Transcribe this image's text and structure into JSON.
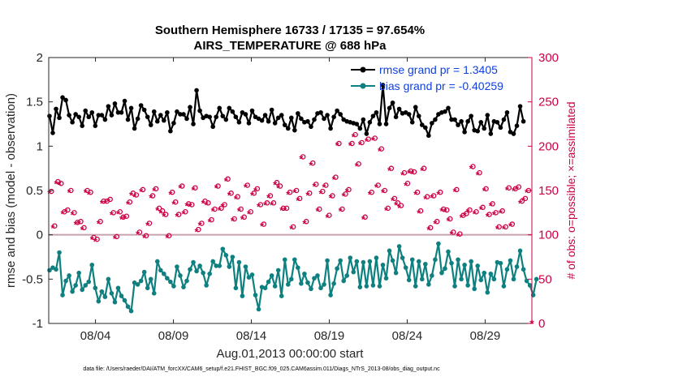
{
  "chart_data": {
    "type": "line",
    "title": "Southern Hemisphere 16733 / 17135 = 97.654%",
    "subtitle": "AIRS_TEMPERATURE @ 688 hPa",
    "xlabel": "Aug.01,2013 00:00:00 start",
    "ylabel": "rmse and bias (model - observation)",
    "y2label": "# of obs: o=possible; ×=assimilated",
    "footer": "data file: /Users/raeder/DAI/ATM_forcXX/CAM6_setup/f.e21.FHIST_BGC.f09_025.CAM6assim.011/Diags_NTrS_2013-08/obs_diag_output.nc",
    "xlim": [
      1.0,
      32.0
    ],
    "ylim": [
      -1,
      2
    ],
    "y2lim": [
      0,
      300
    ],
    "xticks": [
      4,
      9,
      14,
      19,
      24,
      29
    ],
    "xtick_labels": [
      "08/04",
      "08/09",
      "08/14",
      "08/19",
      "08/24",
      "08/29"
    ],
    "yticks": [
      -1,
      -0.5,
      0,
      0.5,
      1,
      1.5,
      2
    ],
    "ytick_labels": [
      "-1",
      "-0.5",
      "0",
      "0.5",
      "1",
      "1.5",
      "2"
    ],
    "y2ticks": [
      0,
      50,
      100,
      150,
      200,
      250,
      300
    ],
    "y2tick_labels": [
      "0",
      "50",
      "100",
      "150",
      "200",
      "250",
      "300"
    ],
    "legend_position": "top-right",
    "colors": {
      "rmse": "#000000",
      "bias": "#0f8080",
      "obs": "#cc0044",
      "zero": "#c8a0b0"
    },
    "series": [
      {
        "name": "rmse grand pr = 1.3405",
        "axis": "left",
        "values": [
          1.34,
          1.15,
          1.42,
          1.32,
          1.55,
          1.52,
          1.35,
          1.27,
          1.36,
          1.33,
          1.23,
          1.4,
          1.33,
          1.38,
          1.23,
          1.35,
          1.35,
          1.3,
          1.45,
          1.35,
          1.48,
          1.38,
          1.38,
          1.51,
          1.3,
          1.43,
          1.2,
          1.31,
          1.46,
          1.41,
          1.33,
          1.24,
          1.39,
          1.28,
          1.35,
          1.29,
          1.38,
          1.17,
          1.26,
          1.39,
          1.36,
          1.36,
          1.31,
          1.44,
          1.25,
          1.63,
          1.4,
          1.32,
          1.34,
          1.33,
          1.22,
          1.33,
          1.43,
          1.34,
          1.3,
          1.43,
          1.39,
          1.33,
          1.27,
          1.38,
          1.36,
          1.26,
          1.4,
          1.33,
          1.31,
          1.29,
          1.35,
          1.28,
          1.41,
          1.26,
          1.32,
          1.35,
          1.24,
          1.2,
          1.32,
          1.18,
          1.37,
          1.31,
          1.27,
          1.28,
          1.22,
          1.3,
          1.37,
          1.38,
          1.31,
          1.35,
          1.2,
          1.33,
          1.4,
          1.36,
          1.3,
          1.28,
          1.27,
          1.26,
          1.25,
          1.2,
          1.3,
          1.14,
          1.27,
          1.34,
          1.38,
          1.25,
          1.69,
          1.25,
          1.43,
          1.49,
          1.33,
          1.42,
          1.37,
          1.38,
          1.36,
          1.27,
          1.44,
          1.34,
          1.24,
          1.21,
          1.12,
          1.26,
          1.3,
          1.36,
          1.38,
          1.39,
          1.43,
          1.3,
          1.3,
          1.24,
          1.28,
          1.16,
          1.28,
          1.34,
          1.18,
          1.17,
          1.27,
          1.2,
          1.35,
          1.14,
          1.28,
          1.27,
          1.21,
          1.3,
          1.38,
          1.16,
          1.14,
          1.23,
          1.45,
          1.28
        ]
      },
      {
        "name": "bias grand pr = -0.40259",
        "axis": "left",
        "values": [
          -0.4,
          -0.37,
          -0.39,
          -0.2,
          -0.68,
          -0.52,
          -0.46,
          -0.64,
          -0.57,
          -0.43,
          -0.62,
          -0.57,
          -0.53,
          -0.34,
          -0.6,
          -0.75,
          -0.64,
          -0.7,
          -0.5,
          -0.66,
          -0.76,
          -0.6,
          -0.69,
          -0.74,
          -0.81,
          -0.86,
          -0.54,
          -0.56,
          -0.52,
          -0.42,
          -0.6,
          -0.5,
          -0.66,
          -0.3,
          -0.4,
          -0.44,
          -0.49,
          -0.53,
          -0.58,
          -0.36,
          -0.46,
          -0.59,
          -0.52,
          -0.39,
          -0.31,
          -0.41,
          -0.35,
          -0.43,
          -0.57,
          -0.44,
          -0.3,
          -0.35,
          -0.35,
          -0.16,
          -0.23,
          -0.36,
          -0.25,
          -0.6,
          -0.31,
          -0.69,
          -0.36,
          -0.48,
          -0.45,
          -0.68,
          -0.84,
          -0.59,
          -0.6,
          -0.53,
          -0.46,
          -0.58,
          -0.4,
          -0.69,
          -0.28,
          -0.56,
          -0.5,
          -0.28,
          -0.37,
          -0.55,
          -0.44,
          -0.54,
          -0.61,
          -0.49,
          -0.46,
          -0.6,
          -0.56,
          -0.29,
          -0.68,
          -0.55,
          -0.38,
          -0.29,
          -0.52,
          -0.46,
          -0.26,
          -0.42,
          -0.3,
          -0.59,
          -0.31,
          -0.58,
          -0.3,
          -0.57,
          -0.26,
          -0.58,
          -0.34,
          -0.49,
          -0.18,
          -0.29,
          -0.43,
          -0.13,
          -0.26,
          -0.37,
          -0.51,
          -0.28,
          -0.58,
          -0.3,
          -0.5,
          -0.33,
          -0.56,
          -0.46,
          -0.28,
          -0.1,
          -0.43,
          -0.38,
          -0.19,
          -0.32,
          -0.58,
          -0.28,
          -0.5,
          -0.34,
          -0.57,
          -0.3,
          -0.61,
          -0.35,
          -0.51,
          -0.43,
          -0.65,
          -0.44,
          -0.5,
          -0.31,
          -0.32,
          -0.58,
          -0.39,
          -0.29,
          -0.5,
          -0.36,
          -0.18,
          -0.39,
          -0.52,
          -0.57,
          -0.68,
          -0.5
        ]
      },
      {
        "name": "possible",
        "axis": "right",
        "values": [
          149,
          110,
          160,
          158,
          126,
          128,
          150,
          125,
          114,
          115,
          108,
          150,
          148,
          97,
          95,
          115,
          138,
          138,
          140,
          125,
          98,
          126,
          120,
          121,
          137,
          147,
          145,
          103,
          151,
          99,
          113,
          144,
          152,
          130,
          127,
          123,
          99,
          148,
          137,
          123,
          155,
          126,
          135,
          134,
          153,
          106,
          113,
          138,
          136,
          117,
          129,
          155,
          130,
          134,
          163,
          147,
          118,
          143,
          129,
          120,
          156,
          126,
          147,
          152,
          134,
          112,
          136,
          144,
          136,
          159,
          155,
          130,
          130,
          148,
          109,
          150,
          141,
          188,
          115,
          147,
          181,
          157,
          129,
          149,
          156,
          122,
          144,
          165,
          203,
          129,
          146,
          151,
          203,
          213,
          180,
          204,
          120,
          208,
          148,
          209,
          156,
          197,
          150,
          130,
          175,
          141,
          136,
          133,
          170,
          158,
          172,
          171,
          148,
          127,
          175,
          143,
          108,
          144,
          115,
          148,
          129,
          128,
          118,
          103,
          151,
          101,
          122,
          124,
          128,
          177,
          126,
          170,
          131,
          152,
          123,
          135,
          125,
          109,
          127,
          109,
          153,
          112,
          152,
          154,
          138,
          141,
          150
        ],
        "x_offset": 0.12
      },
      {
        "name": "assimilated",
        "axis": "right",
        "values": [
          147,
          108,
          158,
          157,
          124,
          126,
          148,
          123,
          112,
          113,
          106,
          148,
          146,
          95,
          93,
          113,
          136,
          136,
          138,
          123,
          96,
          124,
          118,
          119,
          135,
          145,
          143,
          101,
          149,
          97,
          111,
          142,
          150,
          128,
          125,
          121,
          97,
          146,
          135,
          121,
          153,
          124,
          133,
          132,
          151,
          104,
          111,
          136,
          134,
          115,
          127,
          153,
          128,
          132,
          161,
          145,
          116,
          141,
          127,
          118,
          154,
          124,
          145,
          150,
          132,
          110,
          134,
          142,
          134,
          157,
          153,
          128,
          128,
          146,
          107,
          148,
          139,
          186,
          113,
          145,
          179,
          155,
          127,
          147,
          154,
          120,
          142,
          163,
          201,
          127,
          144,
          149,
          201,
          211,
          178,
          202,
          118,
          206,
          146,
          207,
          154,
          195,
          148,
          128,
          173,
          139,
          134,
          131,
          168,
          156,
          170,
          169,
          146,
          125,
          173,
          141,
          106,
          142,
          113,
          146,
          127,
          126,
          116,
          101,
          149,
          99,
          120,
          122,
          126,
          175,
          124,
          168,
          129,
          150,
          121,
          133,
          123,
          107,
          125,
          107,
          151,
          110,
          150,
          152,
          136,
          139,
          148
        ],
        "x_offset": 0.0
      }
    ],
    "x_start": 1.05,
    "x_step": 0.2097
  }
}
